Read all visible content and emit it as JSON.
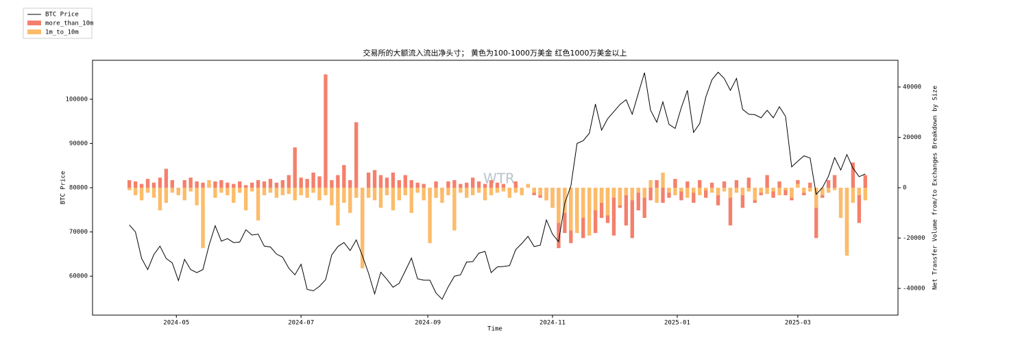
{
  "chart_data": {
    "type": "bar",
    "title": "交易所的大额流入流出净头寸； 黄色为100-1000万美金 红色1000万美金以上",
    "xlabel": "Time",
    "ylabel": "BTC Price",
    "y2label": "Net Transfer Volume from/to Exchanges Breakdown by Size",
    "watermark": "WTR",
    "legend": "upper left",
    "grid": false,
    "xlim": [
      -18,
      376
    ],
    "xticks": [
      {
        "value": 23,
        "label": "2024-05"
      },
      {
        "value": 84,
        "label": "2024-07"
      },
      {
        "value": 146,
        "label": "2024-09"
      },
      {
        "value": 207,
        "label": "2024-11"
      },
      {
        "value": 268,
        "label": "2025-01"
      },
      {
        "value": 327,
        "label": "2025-03"
      }
    ],
    "ylim": [
      51200,
      108800
    ],
    "yticks": [
      60000,
      70000,
      80000,
      90000,
      100000
    ],
    "y2lim": [
      -50600,
      50600
    ],
    "y2ticks": [
      -40000,
      -20000,
      0,
      20000,
      40000
    ],
    "x": [
      0,
      3,
      6,
      9,
      12,
      15,
      18,
      21,
      24,
      27,
      30,
      33,
      36,
      39,
      42,
      45,
      48,
      51,
      54,
      57,
      60,
      63,
      66,
      69,
      72,
      75,
      78,
      81,
      84,
      87,
      90,
      93,
      96,
      99,
      102,
      105,
      108,
      111,
      114,
      117,
      120,
      123,
      126,
      129,
      132,
      135,
      138,
      141,
      144,
      147,
      150,
      153,
      156,
      159,
      162,
      165,
      168,
      171,
      174,
      177,
      180,
      183,
      186,
      189,
      192,
      195,
      198,
      201,
      204,
      207,
      210,
      213,
      216,
      219,
      222,
      225,
      228,
      231,
      234,
      237,
      240,
      243,
      246,
      249,
      252,
      255,
      258,
      261,
      264,
      267,
      270,
      273,
      276,
      279,
      282,
      285,
      288,
      291,
      294,
      297,
      300,
      303,
      306,
      309,
      312,
      315,
      318,
      321,
      324,
      327,
      330,
      333,
      336,
      339,
      342,
      345,
      348,
      351,
      354,
      357,
      360
    ],
    "series": [
      {
        "name": "BTC Price",
        "type": "line",
        "color": "#000000",
        "values": [
          71600,
          70000,
          64000,
          61500,
          64900,
          66800,
          64000,
          63000,
          59000,
          63800,
          61500,
          60800,
          61500,
          67000,
          71400,
          67900,
          68500,
          67600,
          67700,
          70500,
          69300,
          69500,
          66800,
          66600,
          65000,
          64300,
          61800,
          60300,
          62700,
          57000,
          56700,
          57700,
          59200,
          64800,
          66700,
          67600,
          65800,
          68200,
          64600,
          60700,
          56000,
          60900,
          59300,
          57500,
          58400,
          61200,
          64100,
          59400,
          59100,
          59100,
          56200,
          54800,
          57600,
          60000,
          60300,
          63200,
          63300,
          65200,
          65600,
          60800,
          62100,
          62200,
          62400,
          66000,
          67400,
          69000,
          66700,
          67000,
          72700,
          69500,
          67800,
          76500,
          80400,
          90000,
          90600,
          92300,
          98900,
          93000,
          95600,
          97200,
          98800,
          99900,
          96600,
          101400,
          106000,
          97500,
          94800,
          99400,
          94300,
          93400,
          98100,
          102000,
          92500,
          94500,
          100500,
          104400,
          106100,
          104700,
          102000,
          104700,
          97700,
          96600,
          96500,
          95800,
          97500,
          95800,
          98300,
          96100,
          84700,
          86000,
          87200,
          86700,
          78500,
          80000,
          82600,
          86800,
          84000,
          87500,
          84400,
          82500,
          83100
        ]
      },
      {
        "name": "more_than_10m",
        "type": "bar",
        "axis": "y2",
        "color": "#f4806c",
        "values": [
          3000,
          2500,
          1500,
          3500,
          2000,
          4000,
          7500,
          3000,
          -2000,
          3000,
          4000,
          2500,
          2000,
          1500,
          2500,
          3000,
          2000,
          1500,
          2500,
          1000,
          2000,
          3000,
          2500,
          3500,
          2000,
          3000,
          5000,
          16000,
          4000,
          3500,
          6000,
          4500,
          45000,
          3000,
          5000,
          9000,
          3000,
          26000,
          -22000,
          6000,
          7000,
          5000,
          4000,
          6000,
          3000,
          5000,
          3000,
          2000,
          1500,
          -3000,
          2500,
          -2000,
          2500,
          3000,
          1500,
          2000,
          4000,
          2500,
          1500,
          3000,
          2000,
          1500,
          -1500,
          2500,
          -2000,
          1500,
          -3000,
          -4000,
          -5000,
          -8000,
          -24000,
          -18000,
          -22000,
          -15000,
          -20000,
          -10000,
          -18000,
          -12000,
          -14000,
          -19000,
          -8000,
          -15000,
          -20000,
          -9000,
          -12000,
          -5000,
          3000,
          -6000,
          -4000,
          3500,
          -5000,
          2500,
          -6000,
          3000,
          -4000,
          2000,
          -7000,
          2500,
          -15000,
          3000,
          -8000,
          4000,
          -6000,
          -3000,
          5000,
          -4000,
          2500,
          -3000,
          -5000,
          3000,
          -3000,
          2000,
          -20000,
          -4000,
          3000,
          5000,
          -5000,
          -26000,
          10000,
          -14000,
          5000
        ]
      },
      {
        "name": "1m_to_10m",
        "type": "bar",
        "axis": "y2",
        "color": "#fcbc6a",
        "values": [
          -1000,
          -3000,
          -5000,
          -2000,
          -4000,
          -9000,
          -6000,
          -2000,
          -3000,
          -5000,
          -1500,
          -7000,
          -24000,
          3000,
          -4000,
          -2000,
          -3000,
          -6000,
          -2000,
          -9000,
          -1500,
          -13000,
          -3000,
          -2000,
          -4000,
          -3000,
          -2500,
          -5000,
          -3000,
          -4000,
          -2000,
          -5000,
          -3000,
          -7000,
          -15000,
          -6000,
          -10000,
          -4000,
          -32000,
          -4000,
          -5000,
          -8000,
          -3000,
          -9000,
          -5000,
          -3000,
          -10000,
          -2000,
          -5000,
          -22000,
          -4000,
          -6000,
          -3000,
          -17000,
          -2000,
          -4000,
          -3000,
          -2000,
          -5000,
          -3000,
          -2000,
          -1500,
          -4000,
          -2000,
          -3000,
          1500,
          -2000,
          -3000,
          -5000,
          -8000,
          -14000,
          -10000,
          -17000,
          -18000,
          -12000,
          -19000,
          -9000,
          -6000,
          -11000,
          -4000,
          -7000,
          -3000,
          -5000,
          -2000,
          -4000,
          3000,
          -6000,
          6000,
          -2000,
          -3000,
          -1500,
          -4000,
          -2000,
          -3000,
          -1000,
          -2000,
          -3000,
          -1500,
          -4000,
          -2000,
          -3000,
          -1500,
          -5000,
          -2000,
          -2500,
          -1500,
          -3000,
          -1000,
          -4000,
          1500,
          -2000,
          -1500,
          -8000,
          -3000,
          -2000,
          -1000,
          -12000,
          -27000,
          -6000,
          -3000,
          -5000
        ]
      }
    ]
  }
}
